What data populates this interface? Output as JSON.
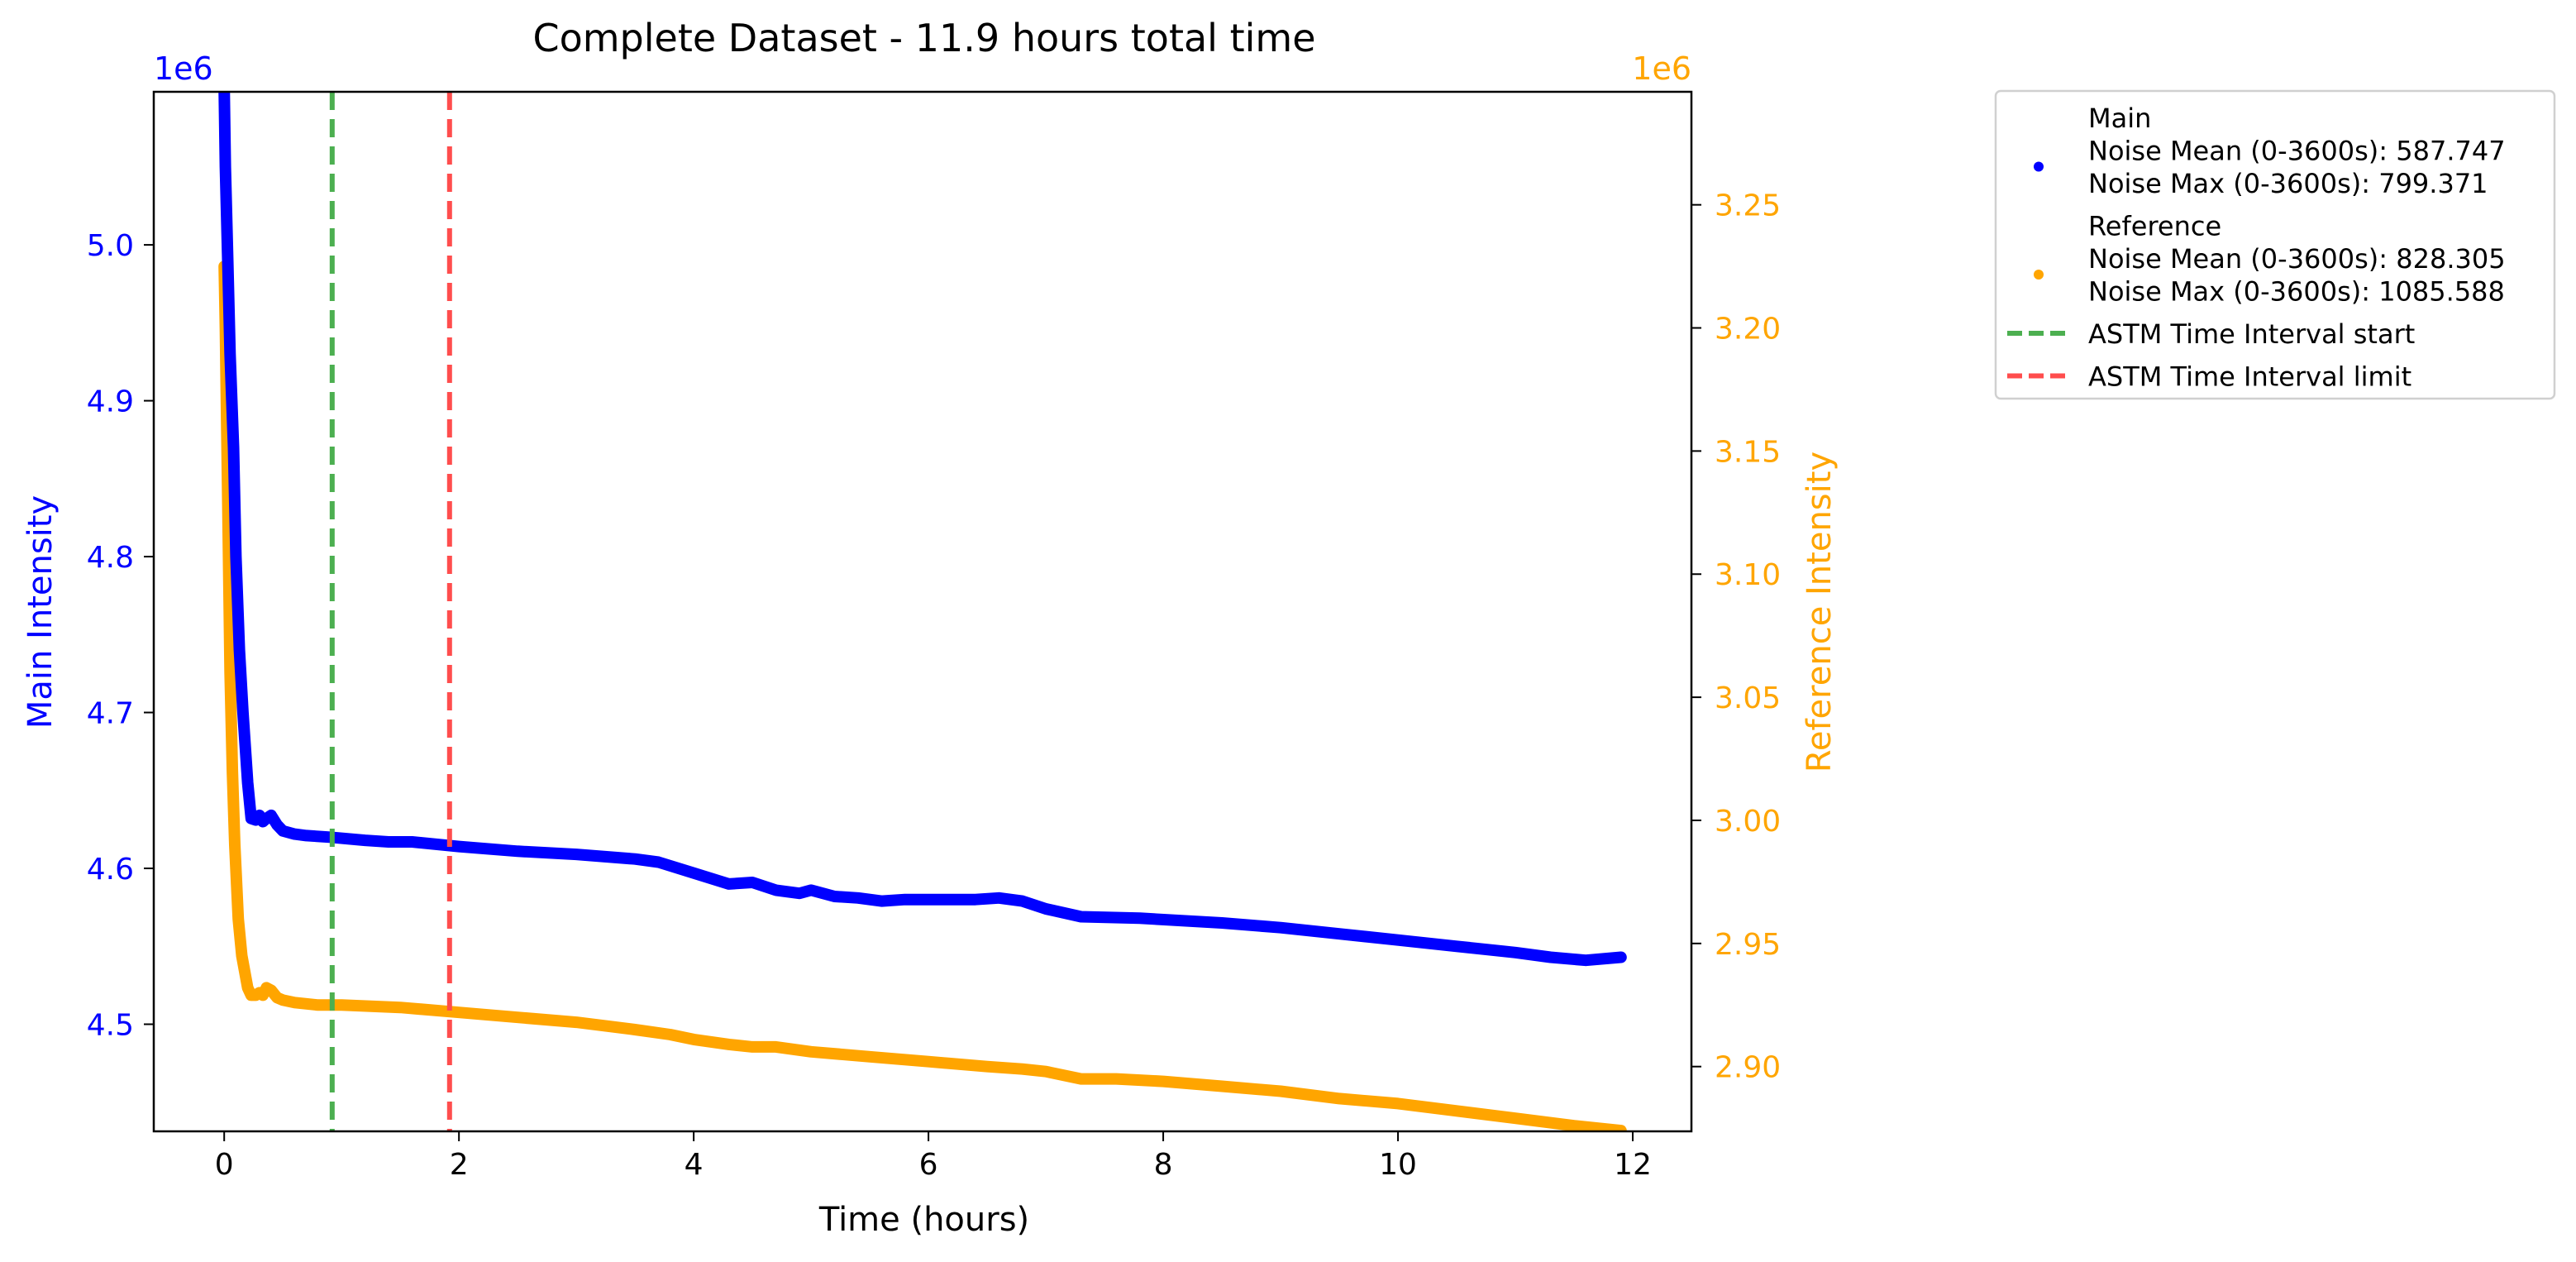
{
  "chart_data": {
    "type": "line",
    "title": "Complete Dataset - 11.9 hours total time",
    "xlabel": "Time (hours)",
    "ylabel_left": "Main Intensity",
    "ylabel_right": "Reference Intensity",
    "left_axis_multiplier": "1e6",
    "right_axis_multiplier": "1e6",
    "xlim": [
      -0.6,
      12.5
    ],
    "ylim_left": [
      4.4313,
      5.0982
    ],
    "ylim_right": [
      2.8737,
      3.2959
    ],
    "x_ticks": [
      0,
      2,
      4,
      6,
      8,
      10,
      12
    ],
    "x_tick_labels": [
      "0",
      "2",
      "4",
      "6",
      "8",
      "10",
      "12"
    ],
    "y_left_ticks": [
      4.5,
      4.6,
      4.7,
      4.8,
      4.9,
      5.0
    ],
    "y_left_tick_labels": [
      "4.5",
      "4.6",
      "4.7",
      "4.8",
      "4.9",
      "5.0"
    ],
    "y_right_ticks": [
      2.9,
      2.95,
      3.0,
      3.05,
      3.1,
      3.15,
      3.2,
      3.25
    ],
    "y_right_tick_labels": [
      "2.90",
      "2.95",
      "3.00",
      "3.05",
      "3.10",
      "3.15",
      "3.20",
      "3.25"
    ],
    "grid": false,
    "legend_placement": "outside-top-right",
    "colors": {
      "main": "#0000ff",
      "reference": "#ffa500",
      "astm_start": "#4caf50",
      "astm_limit": "#ff4d4d",
      "left_axis": "#0000ff",
      "right_axis": "#ffa500"
    },
    "series": [
      {
        "name": "Main",
        "axis": "left",
        "color": "#0000ff",
        "x": [
          0.0,
          0.01,
          0.03,
          0.05,
          0.08,
          0.1,
          0.13,
          0.16,
          0.2,
          0.23,
          0.27,
          0.3,
          0.33,
          0.36,
          0.4,
          0.45,
          0.5,
          0.6,
          0.7,
          0.9,
          1.2,
          1.4,
          1.6,
          2.0,
          2.5,
          3.0,
          3.5,
          3.7,
          4.0,
          4.3,
          4.5,
          4.7,
          4.9,
          5.0,
          5.2,
          5.4,
          5.6,
          5.8,
          6.0,
          6.4,
          6.6,
          6.8,
          7.0,
          7.3,
          7.8,
          8.5,
          9.0,
          9.5,
          10.0,
          10.5,
          11.0,
          11.3,
          11.6,
          11.9
        ],
        "values": [
          5.1,
          5.05,
          4.99,
          4.93,
          4.87,
          4.8,
          4.74,
          4.7,
          4.655,
          4.632,
          4.631,
          4.634,
          4.63,
          4.632,
          4.634,
          4.628,
          4.624,
          4.622,
          4.621,
          4.62,
          4.618,
          4.617,
          4.617,
          4.614,
          4.611,
          4.609,
          4.606,
          4.604,
          4.597,
          4.59,
          4.591,
          4.586,
          4.584,
          4.586,
          4.582,
          4.581,
          4.579,
          4.58,
          4.58,
          4.58,
          4.581,
          4.579,
          4.574,
          4.569,
          4.568,
          4.565,
          4.562,
          4.558,
          4.554,
          4.55,
          4.546,
          4.543,
          4.541,
          4.543
        ]
      },
      {
        "name": "Reference",
        "axis": "right",
        "color": "#ffa500",
        "x": [
          0.0,
          0.01,
          0.03,
          0.05,
          0.07,
          0.09,
          0.12,
          0.15,
          0.2,
          0.23,
          0.27,
          0.3,
          0.33,
          0.36,
          0.4,
          0.45,
          0.5,
          0.6,
          0.8,
          1.0,
          1.5,
          2.0,
          2.5,
          3.0,
          3.5,
          3.8,
          4.0,
          4.3,
          4.5,
          4.7,
          5.0,
          5.5,
          6.0,
          6.5,
          6.8,
          7.0,
          7.3,
          7.6,
          8.0,
          8.5,
          9.0,
          9.5,
          10.0,
          10.5,
          11.0,
          11.5,
          11.9
        ],
        "values": [
          3.225,
          3.2,
          3.13,
          3.06,
          3.02,
          2.99,
          2.96,
          2.945,
          2.932,
          2.929,
          2.929,
          2.93,
          2.929,
          2.932,
          2.931,
          2.928,
          2.927,
          2.926,
          2.925,
          2.925,
          2.924,
          2.922,
          2.92,
          2.918,
          2.915,
          2.913,
          2.911,
          2.909,
          2.908,
          2.908,
          2.906,
          2.904,
          2.902,
          2.9,
          2.899,
          2.898,
          2.895,
          2.895,
          2.894,
          2.892,
          2.89,
          2.887,
          2.885,
          2.882,
          2.879,
          2.876,
          2.874
        ]
      }
    ],
    "vertical_lines": [
      {
        "name": "ASTM Time Interval start",
        "x": 0.92,
        "color": "#4caf50",
        "style": "dashed"
      },
      {
        "name": "ASTM Time Interval limit",
        "x": 1.92,
        "color": "#ff4d4d",
        "style": "dashed"
      }
    ],
    "legend": [
      {
        "kind": "marker",
        "color": "#0000ff",
        "lines": [
          "Main",
          "Noise Mean (0-3600s): 587.747",
          "Noise Max (0-3600s): 799.371"
        ]
      },
      {
        "kind": "marker",
        "color": "#ffa500",
        "lines": [
          "Reference",
          "Noise Mean (0-3600s): 828.305",
          "Noise Max (0-3600s): 1085.588"
        ]
      },
      {
        "kind": "dashed",
        "color": "#4caf50",
        "lines": [
          "ASTM Time Interval start"
        ]
      },
      {
        "kind": "dashed",
        "color": "#ff4d4d",
        "lines": [
          "ASTM Time Interval limit"
        ]
      }
    ]
  }
}
